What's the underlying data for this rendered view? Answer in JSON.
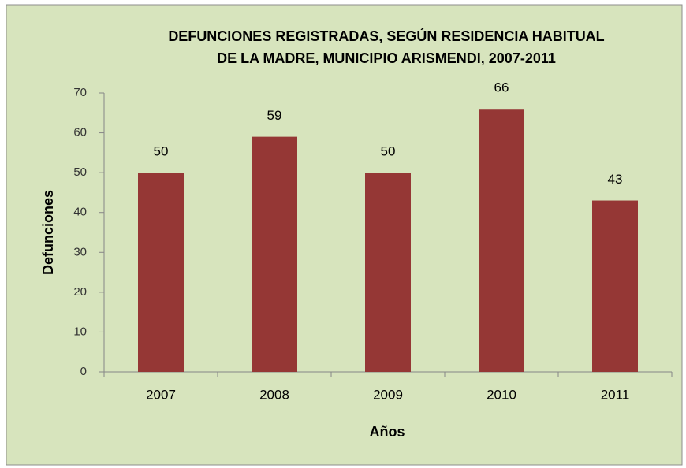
{
  "chart_data": {
    "type": "bar",
    "title": [
      "DEFUNCIONES REGISTRADAS, SEGÚN RESIDENCIA HABITUAL",
      "DE LA MADRE, MUNICIPIO ARISMENDI, 2007-2011"
    ],
    "x_label": "Años",
    "y_label": "Defunciones",
    "categories": [
      "2007",
      "2008",
      "2009",
      "2010",
      "2011"
    ],
    "values": [
      50,
      59,
      50,
      66,
      43
    ],
    "color": "#953735",
    "ylim": [
      0,
      70
    ],
    "yticks": [
      0,
      10,
      20,
      30,
      40,
      50,
      60,
      70
    ],
    "grid": false
  }
}
